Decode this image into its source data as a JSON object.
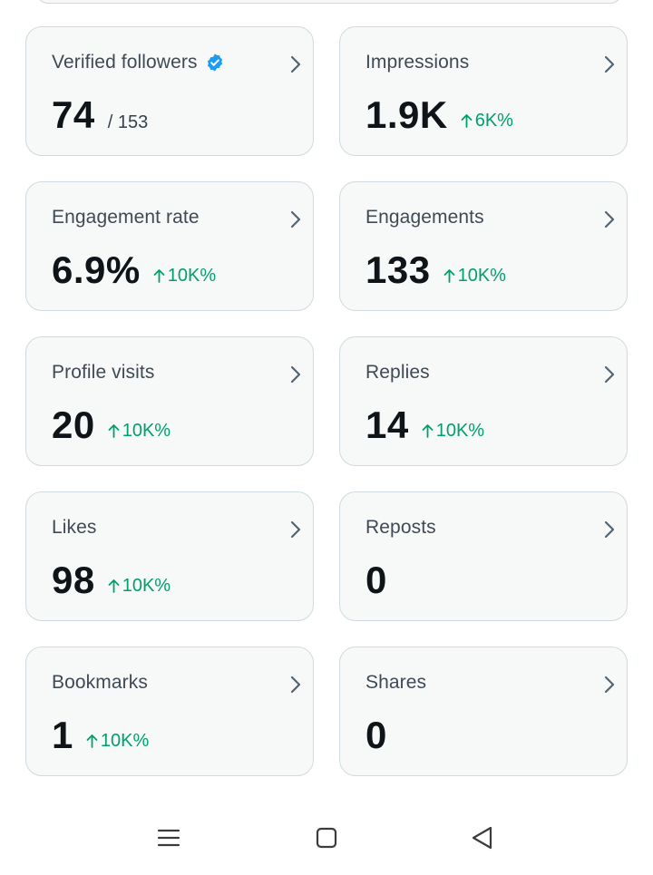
{
  "cards": [
    {
      "label": "Verified followers",
      "value": "74",
      "sub": "/ 153",
      "trend": ""
    },
    {
      "label": "Impressions",
      "value": "1.9K",
      "sub": "",
      "trend": "6K%"
    },
    {
      "label": "Engagement rate",
      "value": "6.9%",
      "sub": "",
      "trend": "10K%"
    },
    {
      "label": "Engagements",
      "value": "133",
      "sub": "",
      "trend": "10K%"
    },
    {
      "label": "Profile visits",
      "value": "20",
      "sub": "",
      "trend": "10K%"
    },
    {
      "label": "Replies",
      "value": "14",
      "sub": "",
      "trend": "10K%"
    },
    {
      "label": "Likes",
      "value": "98",
      "sub": "",
      "trend": "10K%"
    },
    {
      "label": "Reposts",
      "value": "0",
      "sub": "",
      "trend": ""
    },
    {
      "label": "Bookmarks",
      "value": "1",
      "sub": "",
      "trend": "10K%"
    },
    {
      "label": "Shares",
      "value": "0",
      "sub": "",
      "trend": ""
    }
  ],
  "colors": {
    "trend_up": "#00a06b",
    "verified_badge": "#1d9bf0",
    "card_bg": "#f7f9f9",
    "card_border": "#cfd9de"
  },
  "icons": {
    "chevron": "chevron-right-icon",
    "trend": "arrow-up-icon",
    "verified": "verified-badge-icon"
  },
  "navbar": {
    "buttons": [
      "menu-icon",
      "home-icon",
      "back-icon"
    ]
  }
}
